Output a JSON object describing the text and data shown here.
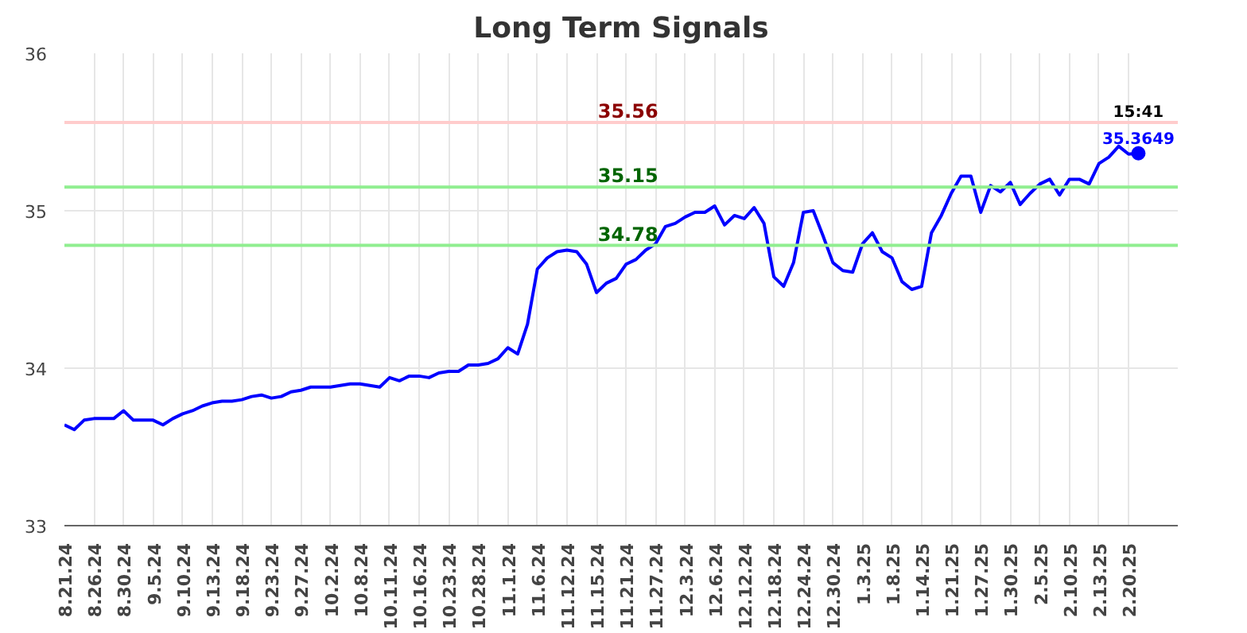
{
  "chart_data": {
    "type": "line",
    "title": "Long Term Signals",
    "categories": [
      "8.21.24",
      null,
      null,
      "8.26.24",
      null,
      null,
      "8.30.24",
      null,
      null,
      "9.5.24",
      null,
      null,
      "9.10.24",
      null,
      null,
      "9.13.24",
      null,
      null,
      "9.18.24",
      null,
      null,
      "9.23.24",
      null,
      null,
      "9.27.24",
      null,
      null,
      "10.2.24",
      null,
      null,
      "10.8.24",
      null,
      null,
      "10.11.24",
      null,
      null,
      "10.16.24",
      null,
      null,
      "10.23.24",
      null,
      null,
      "10.28.24",
      null,
      null,
      "11.1.24",
      null,
      null,
      "11.6.24",
      null,
      null,
      "11.12.24",
      null,
      null,
      "11.15.24",
      null,
      null,
      "11.21.24",
      null,
      null,
      "11.27.24",
      null,
      null,
      "12.3.24",
      null,
      null,
      "12.6.24",
      null,
      null,
      "12.12.24",
      null,
      null,
      "12.18.24",
      null,
      null,
      "12.24.24",
      null,
      null,
      "12.30.24",
      null,
      null,
      "1.3.25",
      null,
      null,
      "1.8.25",
      null,
      null,
      "1.14.25",
      null,
      null,
      "1.21.25",
      null,
      null,
      "1.27.25",
      null,
      null,
      "1.30.25",
      null,
      null,
      "2.5.25",
      null,
      null,
      "2.10.25",
      null,
      null,
      "2.13.25",
      null,
      null,
      "2.20.25",
      null
    ],
    "series": [
      {
        "color": "#0000ff",
        "values": [
          33.64,
          33.61,
          33.67,
          33.68,
          33.68,
          33.68,
          33.73,
          33.67,
          33.67,
          33.67,
          33.64,
          33.68,
          33.71,
          33.73,
          33.76,
          33.78,
          33.79,
          33.79,
          33.8,
          33.82,
          33.83,
          33.81,
          33.82,
          33.85,
          33.86,
          33.88,
          33.88,
          33.88,
          33.89,
          33.9,
          33.9,
          33.89,
          33.88,
          33.94,
          33.92,
          33.95,
          33.95,
          33.94,
          33.97,
          33.98,
          33.98,
          34.02,
          34.02,
          34.03,
          34.06,
          34.13,
          34.09,
          34.28,
          34.63,
          34.7,
          34.74,
          34.75,
          34.74,
          34.66,
          34.48,
          34.54,
          34.57,
          34.66,
          34.69,
          34.75,
          34.79,
          34.9,
          34.92,
          34.96,
          34.99,
          34.99,
          35.03,
          34.91,
          34.97,
          34.95,
          35.02,
          34.92,
          34.58,
          34.52,
          34.67,
          34.99,
          35.0,
          34.84,
          34.67,
          34.62,
          34.61,
          34.79,
          34.86,
          34.74,
          34.7,
          34.55,
          34.5,
          34.52,
          34.86,
          34.97,
          35.11,
          35.22,
          35.22,
          34.99,
          35.16,
          35.12,
          35.18,
          35.04,
          35.11,
          35.17,
          35.2,
          35.1,
          35.2,
          35.2,
          35.17,
          35.3,
          35.34,
          35.41,
          35.36,
          35.3649
        ]
      }
    ],
    "ylim": [
      33,
      36
    ],
    "yticks": [
      33,
      34,
      35,
      36
    ],
    "ref_lines": [
      {
        "axis": "y",
        "value": 35.56,
        "label": "35.56",
        "color": "#ffcccc"
      },
      {
        "axis": "y",
        "value": 35.15,
        "label": "35.15",
        "color": "#90ee90"
      },
      {
        "axis": "y",
        "value": 34.78,
        "label": "34.78",
        "color": "#90ee90"
      }
    ],
    "annotations": [
      {
        "text": "15:41",
        "y": 35.3649
      },
      {
        "text": "35.3649",
        "y": 35.3649
      }
    ],
    "grid": true,
    "marker": "none",
    "line_style": "solid"
  }
}
